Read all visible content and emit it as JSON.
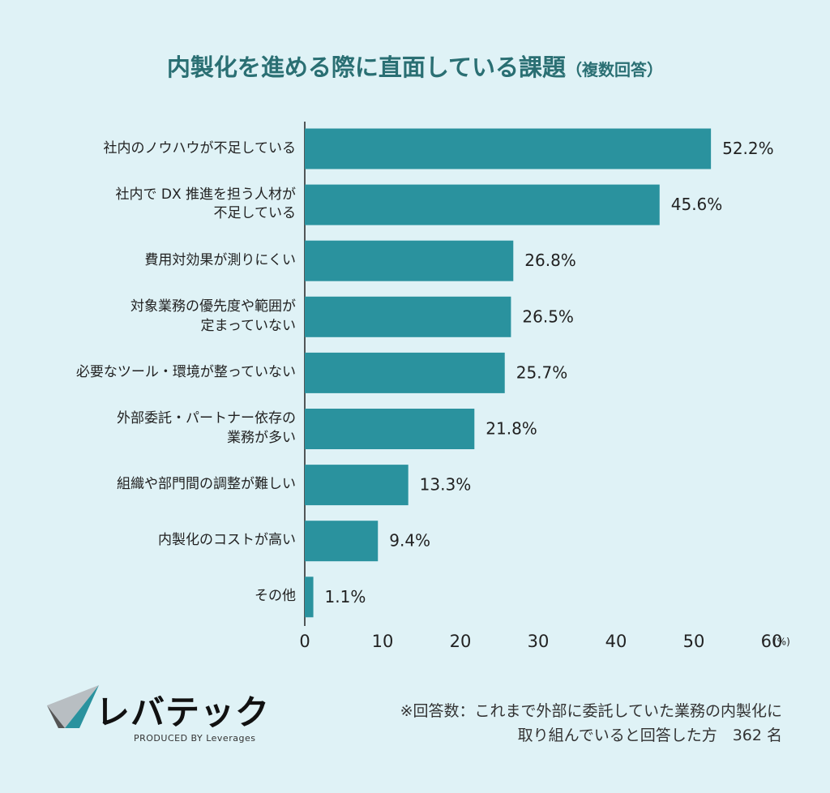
{
  "chart_data": {
    "type": "barh",
    "title": "内製化を進める際に直面している課題",
    "subtitle": "（複数回答）",
    "categories": [
      "社内のノウハウが不足している",
      "社内で DX 推進を担う人材が\n不足している",
      "費用対効果が測りにくい",
      "対象業務の優先度や範囲が\n定まっていない",
      "必要なツール・環境が整っていない",
      "外部委託・パートナー依存の\n業務が多い",
      "組織や部門間の調整が難しい",
      "内製化のコストが高い",
      "その他"
    ],
    "values": [
      52.2,
      45.6,
      26.8,
      26.5,
      25.7,
      21.8,
      13.3,
      9.4,
      1.1
    ],
    "value_labels": [
      "52.2%",
      "45.6%",
      "26.8%",
      "26.5%",
      "25.7%",
      "21.8%",
      "13.3%",
      "9.4%",
      "1.1%"
    ],
    "color": "#2a929e",
    "xlim": [
      0,
      60
    ],
    "xticks": [
      0,
      10,
      20,
      30,
      40,
      50,
      60
    ],
    "x_unit": "(%)"
  },
  "footnote": "※回答数：これまで外部に委託していた業務の内製化に\n取り組んでいると回答した方　362 名",
  "logo": {
    "name": "レバテック",
    "tagline": "PRODUCED BY Leverages"
  }
}
